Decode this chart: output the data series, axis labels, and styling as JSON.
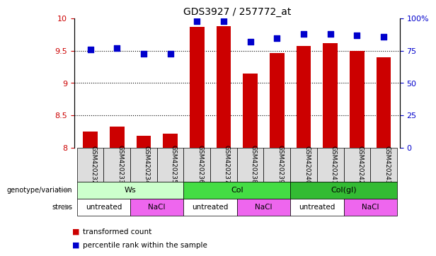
{
  "title": "GDS3927 / 257772_at",
  "samples": [
    "GSM420232",
    "GSM420233",
    "GSM420234",
    "GSM420235",
    "GSM420236",
    "GSM420237",
    "GSM420238",
    "GSM420239",
    "GSM420240",
    "GSM420241",
    "GSM420242",
    "GSM420243"
  ],
  "transformed_count": [
    8.25,
    8.32,
    8.18,
    8.22,
    9.87,
    9.88,
    9.15,
    9.47,
    9.58,
    9.62,
    9.5,
    9.4
  ],
  "percentile_rank": [
    76,
    77,
    73,
    73,
    98,
    98,
    82,
    85,
    88,
    88,
    87,
    86
  ],
  "bar_bottom": 8.0,
  "ylim_left": [
    8.0,
    10.0
  ],
  "ylim_right": [
    0,
    100
  ],
  "yticks_left": [
    8.0,
    8.5,
    9.0,
    9.5,
    10.0
  ],
  "yticks_right": [
    0,
    25,
    50,
    75,
    100
  ],
  "bar_color": "#cc0000",
  "dot_color": "#0000cc",
  "dotted_lines": [
    8.5,
    9.0,
    9.5
  ],
  "groups": [
    {
      "label": "Ws",
      "start": 0,
      "end": 3,
      "color": "#ccffcc"
    },
    {
      "label": "Col",
      "start": 4,
      "end": 7,
      "color": "#44dd44"
    },
    {
      "label": "Col(gl)",
      "start": 8,
      "end": 11,
      "color": "#33bb33"
    }
  ],
  "stress_groups": [
    {
      "label": "untreated",
      "start": 0,
      "end": 1,
      "color": "#ffffff"
    },
    {
      "label": "NaCl",
      "start": 2,
      "end": 3,
      "color": "#ee66ee"
    },
    {
      "label": "untreated",
      "start": 4,
      "end": 5,
      "color": "#ffffff"
    },
    {
      "label": "NaCl",
      "start": 6,
      "end": 7,
      "color": "#ee66ee"
    },
    {
      "label": "untreated",
      "start": 8,
      "end": 9,
      "color": "#ffffff"
    },
    {
      "label": "NaCl",
      "start": 10,
      "end": 11,
      "color": "#ee66ee"
    }
  ],
  "legend_items": [
    {
      "label": "transformed count",
      "color": "#cc0000"
    },
    {
      "label": "percentile rank within the sample",
      "color": "#0000cc"
    }
  ],
  "genotype_label": "genotype/variation",
  "stress_label": "stress",
  "dot_size": 35,
  "sample_box_color": "#dddddd",
  "arrow_color": "#888888"
}
